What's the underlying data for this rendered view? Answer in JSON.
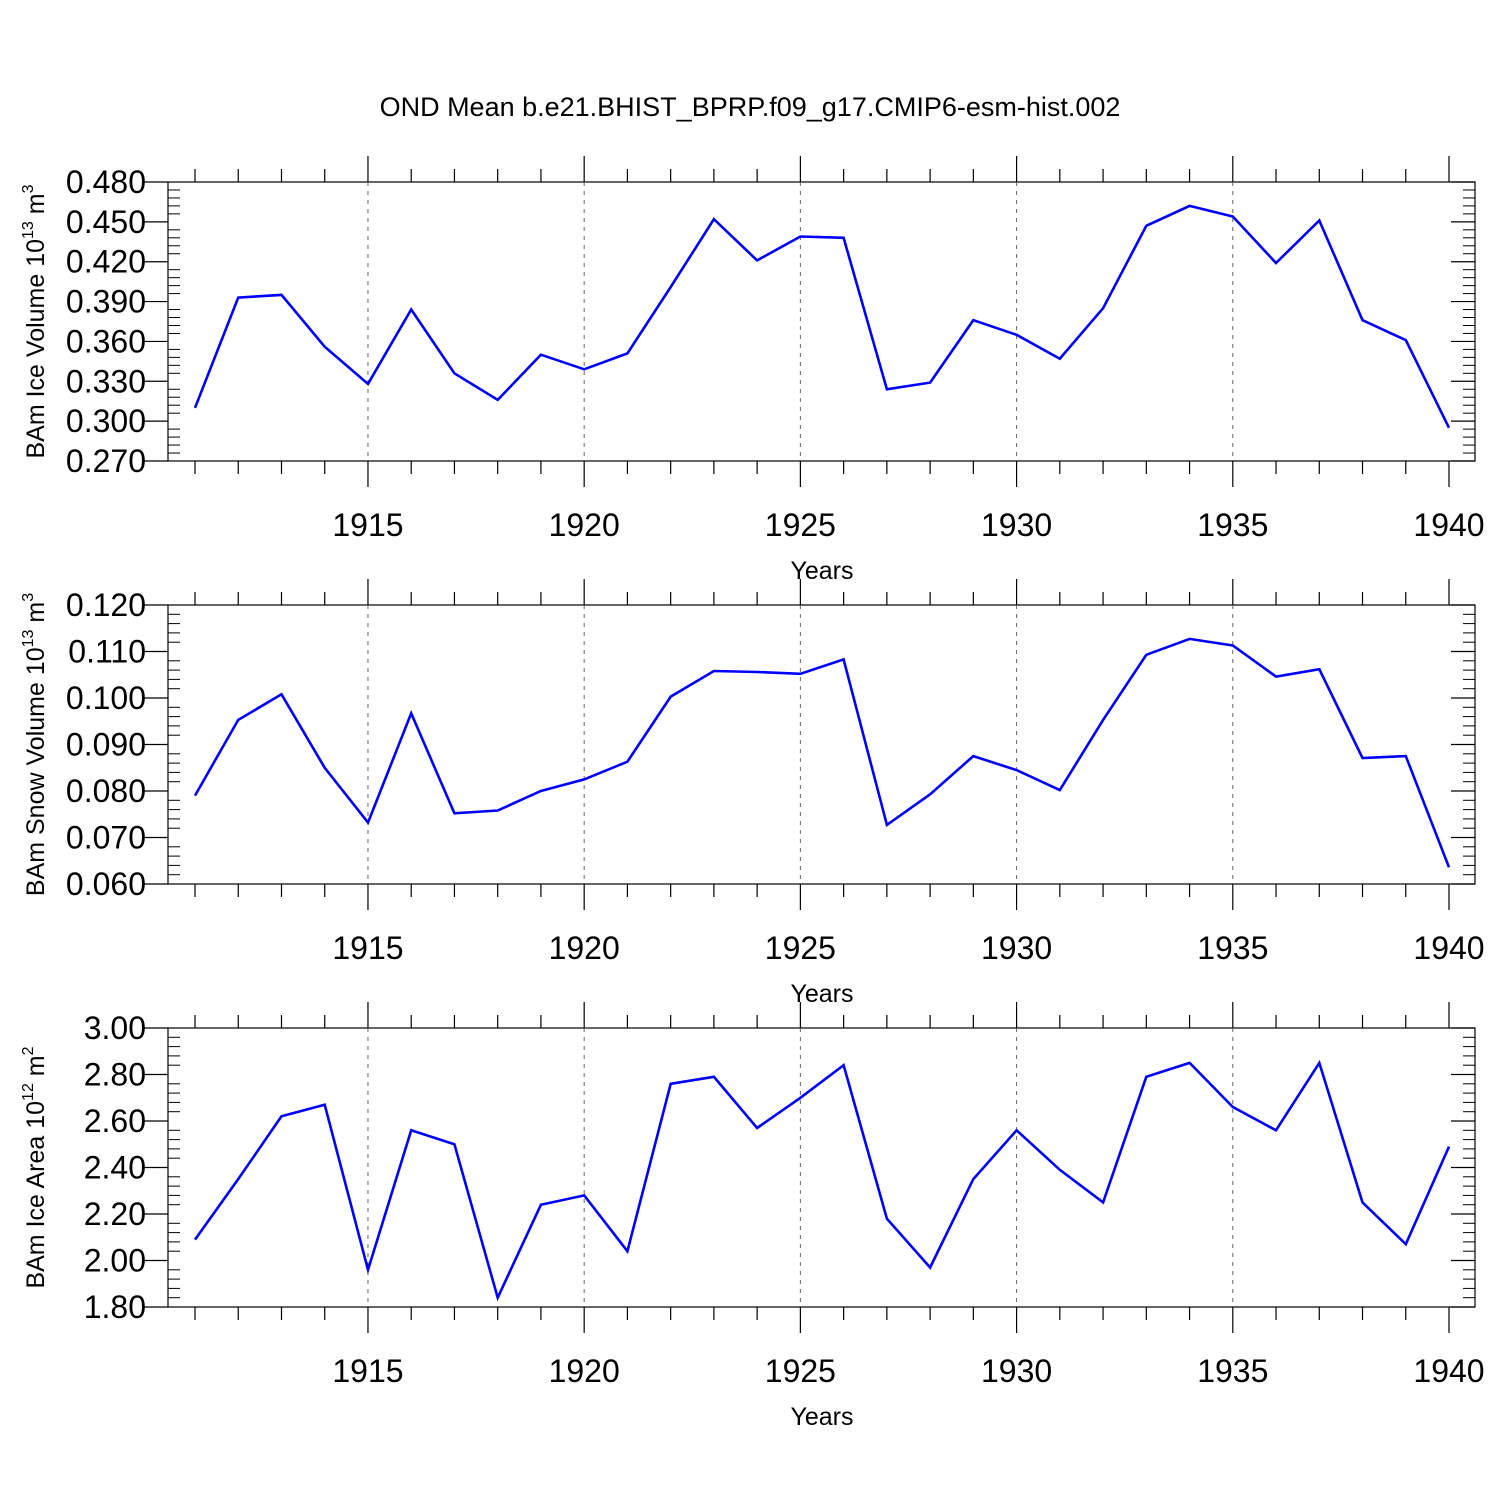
{
  "title": "OND Mean b.e21.BHIST_BPRP.f09_g17.CMIP6-esm-hist.002",
  "chart_data": [
    {
      "type": "line",
      "ylabel": "BAm Ice Volume 10",
      "ylabel_exp": "13",
      "ylabel_unit": " m",
      "ylabel_unit_exp": "3",
      "xlabel": "Years",
      "xlim": [
        1911,
        1940
      ],
      "ylim": [
        0.27,
        0.48
      ],
      "yticks": [
        "0.270",
        "0.300",
        "0.330",
        "0.360",
        "0.390",
        "0.420",
        "0.450",
        "0.480"
      ],
      "xticks": [
        "1915",
        "1920",
        "1925",
        "1930",
        "1935",
        "1940"
      ],
      "series": [
        {
          "color": "#0000ff",
          "x": [
            1911,
            1912,
            1913,
            1914,
            1915,
            1916,
            1917,
            1918,
            1919,
            1920,
            1921,
            1922,
            1923,
            1924,
            1925,
            1926,
            1927,
            1928,
            1929,
            1930,
            1931,
            1932,
            1933,
            1934,
            1935,
            1936,
            1937,
            1938,
            1939,
            1940
          ],
          "values": [
            0.31,
            0.393,
            0.395,
            0.356,
            0.328,
            0.384,
            0.336,
            0.316,
            0.35,
            0.339,
            0.351,
            0.401,
            0.452,
            0.421,
            0.439,
            0.438,
            0.324,
            0.329,
            0.376,
            0.365,
            0.347,
            0.385,
            0.447,
            0.462,
            0.454,
            0.419,
            0.451,
            0.376,
            0.361,
            0.295
          ]
        }
      ]
    },
    {
      "type": "line",
      "ylabel": "BAm Snow Volume 10",
      "ylabel_exp": "13",
      "ylabel_unit": " m",
      "ylabel_unit_exp": "3",
      "xlabel": "Years",
      "xlim": [
        1911,
        1940
      ],
      "ylim": [
        0.06,
        0.12
      ],
      "yticks": [
        "0.060",
        "0.070",
        "0.080",
        "0.090",
        "0.100",
        "0.110",
        "0.120"
      ],
      "xticks": [
        "1915",
        "1920",
        "1925",
        "1930",
        "1935",
        "1940"
      ],
      "series": [
        {
          "color": "#0000ff",
          "x": [
            1911,
            1912,
            1913,
            1914,
            1915,
            1916,
            1917,
            1918,
            1919,
            1920,
            1921,
            1922,
            1923,
            1924,
            1925,
            1926,
            1927,
            1928,
            1929,
            1930,
            1931,
            1932,
            1933,
            1934,
            1935,
            1936,
            1937,
            1938,
            1939,
            1940
          ],
          "values": [
            0.079,
            0.0953,
            0.1008,
            0.085,
            0.0732,
            0.0967,
            0.0752,
            0.0758,
            0.08,
            0.0825,
            0.0863,
            0.1003,
            0.1058,
            0.1056,
            0.1052,
            0.1083,
            0.0727,
            0.0793,
            0.0875,
            0.0845,
            0.0802,
            0.0953,
            0.1093,
            0.1127,
            0.1113,
            0.1046,
            0.1062,
            0.0871,
            0.0875,
            0.0636
          ]
        }
      ]
    },
    {
      "type": "line",
      "ylabel": "BAm Ice Area 10",
      "ylabel_exp": "12",
      "ylabel_unit": " m",
      "ylabel_unit_exp": "2",
      "xlabel": "Years",
      "xlim": [
        1911,
        1940
      ],
      "ylim": [
        1.8,
        3.0
      ],
      "yticks": [
        "1.80",
        "2.00",
        "2.20",
        "2.40",
        "2.60",
        "2.80",
        "3.00"
      ],
      "xticks": [
        "1915",
        "1920",
        "1925",
        "1930",
        "1935",
        "1940"
      ],
      "series": [
        {
          "color": "#0000ff",
          "x": [
            1911,
            1912,
            1913,
            1914,
            1915,
            1916,
            1917,
            1918,
            1919,
            1920,
            1921,
            1922,
            1923,
            1924,
            1925,
            1926,
            1927,
            1928,
            1929,
            1930,
            1931,
            1932,
            1933,
            1934,
            1935,
            1936,
            1937,
            1938,
            1939,
            1940
          ],
          "values": [
            2.09,
            2.35,
            2.62,
            2.67,
            1.96,
            2.56,
            2.5,
            1.84,
            2.24,
            2.28,
            2.04,
            2.76,
            2.79,
            2.57,
            2.7,
            2.84,
            2.18,
            1.97,
            2.35,
            2.56,
            2.39,
            2.25,
            2.79,
            2.85,
            2.66,
            2.56,
            2.85,
            2.25,
            2.07,
            2.49
          ]
        }
      ]
    }
  ]
}
